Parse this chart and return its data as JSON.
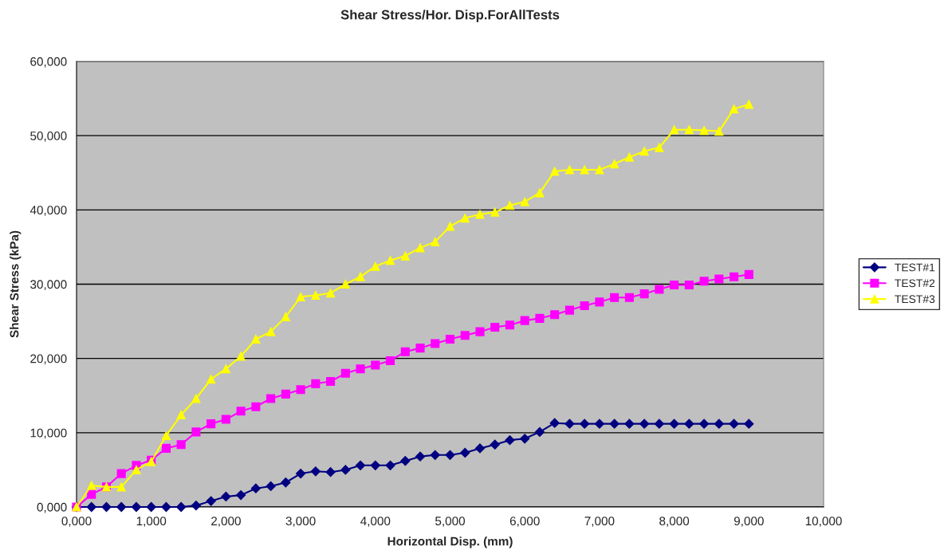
{
  "chart_data": {
    "type": "line",
    "title": "Shear Stress/Hor. Disp.ForAllTests",
    "xlabel": "Horizontal Disp. (mm)",
    "ylabel": "Shear Stress (kPa)",
    "x": [
      0,
      0.2,
      0.4,
      0.6,
      0.8,
      1.0,
      1.2,
      1.4,
      1.6,
      1.8,
      2.0,
      2.2,
      2.4,
      2.6,
      2.8,
      3.0,
      3.2,
      3.4,
      3.6,
      3.8,
      4.0,
      4.2,
      4.4,
      4.6,
      4.8,
      5.0,
      5.2,
      5.4,
      5.6,
      5.8,
      6.0,
      6.2,
      6.4,
      6.6,
      6.8,
      7.0,
      7.2,
      7.4,
      7.6,
      7.8,
      8.0,
      8.2,
      8.4,
      8.6,
      8.8,
      9.0
    ],
    "series": [
      {
        "name": "TEST#1",
        "color": "#000080",
        "marker": "diamond",
        "values": [
          0,
          0,
          0,
          0,
          0,
          0,
          0,
          0,
          0.2,
          0.8,
          1.4,
          1.6,
          2.5,
          2.8,
          3.3,
          4.5,
          4.8,
          4.7,
          5.0,
          5.6,
          5.6,
          5.6,
          6.2,
          6.8,
          7.0,
          7.0,
          7.3,
          7.9,
          8.4,
          9.0,
          9.2,
          10.1,
          11.3,
          11.2,
          11.2,
          11.2,
          11.2,
          11.2,
          11.2,
          11.2,
          11.2,
          11.2,
          11.2,
          11.2,
          11.2,
          11.2
        ]
      },
      {
        "name": "TEST#2",
        "color": "#ff00ff",
        "marker": "square",
        "values": [
          0,
          1.7,
          2.7,
          4.5,
          5.6,
          6.3,
          7.9,
          8.4,
          10.1,
          11.2,
          11.8,
          12.9,
          13.5,
          14.6,
          15.2,
          15.8,
          16.6,
          16.9,
          18.0,
          18.6,
          19.1,
          19.7,
          20.9,
          21.4,
          22.0,
          22.6,
          23.1,
          23.6,
          24.2,
          24.5,
          25.1,
          25.4,
          25.9,
          26.5,
          27.1,
          27.6,
          28.2,
          28.2,
          28.7,
          29.3,
          29.9,
          29.9,
          30.4,
          30.7,
          31.0,
          31.3
        ]
      },
      {
        "name": "TEST#3",
        "color": "#ffff00",
        "marker": "triangle",
        "values": [
          0,
          2.9,
          2.7,
          2.7,
          5.0,
          6.1,
          9.6,
          12.4,
          14.6,
          17.2,
          18.6,
          20.3,
          22.6,
          23.6,
          25.6,
          28.3,
          28.5,
          28.8,
          30.0,
          31.0,
          32.4,
          33.2,
          33.8,
          34.9,
          35.7,
          37.8,
          38.9,
          39.4,
          39.7,
          40.6,
          41.1,
          42.3,
          45.2,
          45.4,
          45.4,
          45.4,
          46.2,
          47.1,
          47.9,
          48.4,
          50.8,
          50.8,
          50.7,
          50.6,
          53.6,
          54.2
        ]
      }
    ],
    "xlim": [
      0,
      10
    ],
    "ylim": [
      0,
      60
    ],
    "xticks": [
      {
        "value": 0,
        "label": "0,000"
      },
      {
        "value": 1,
        "label": "1,000"
      },
      {
        "value": 2,
        "label": "2,000"
      },
      {
        "value": 3,
        "label": "3,000"
      },
      {
        "value": 4,
        "label": "4,000"
      },
      {
        "value": 5,
        "label": "5,000"
      },
      {
        "value": 6,
        "label": "6,000"
      },
      {
        "value": 7,
        "label": "7,000"
      },
      {
        "value": 8,
        "label": "8,000"
      },
      {
        "value": 9,
        "label": "9,000"
      },
      {
        "value": 10,
        "label": "10,000"
      }
    ],
    "yticks": [
      {
        "value": 0,
        "label": "0,000"
      },
      {
        "value": 10,
        "label": "10,000"
      },
      {
        "value": 20,
        "label": "20,000"
      },
      {
        "value": 30,
        "label": "30,000"
      },
      {
        "value": 40,
        "label": "40,000"
      },
      {
        "value": 50,
        "label": "50,000"
      },
      {
        "value": 60,
        "label": "60,000"
      }
    ],
    "grid": "y",
    "legend": "right",
    "line_style": "solid"
  }
}
